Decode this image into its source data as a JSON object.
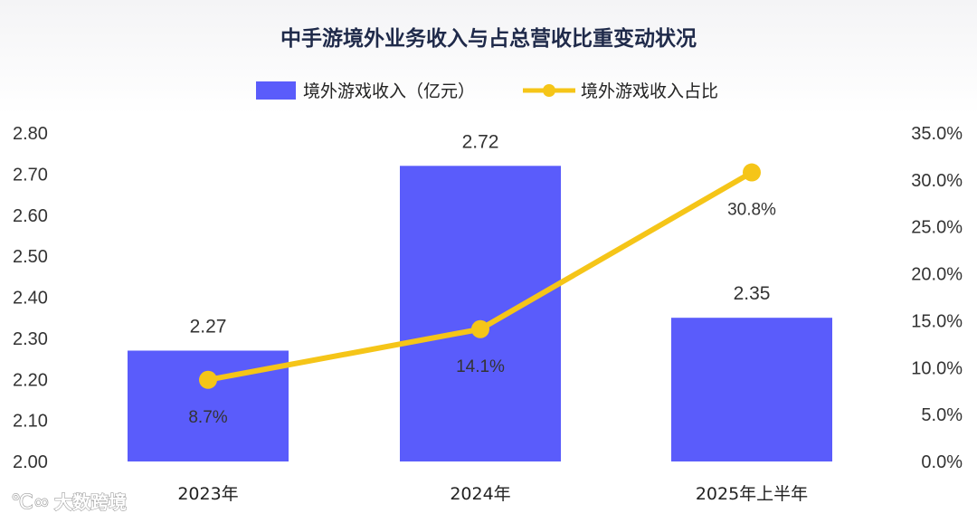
{
  "chart_data": {
    "type": "bar",
    "title": "中手游境外业务收入与占总营收比重变动状况",
    "categories": [
      "2023年",
      "2024年",
      "2025年上半年"
    ],
    "series": [
      {
        "name": "境外游戏收入（亿元）",
        "type": "bar",
        "axis": "left",
        "values": [
          2.27,
          2.72,
          2.35
        ],
        "labels": [
          "2.27",
          "2.72",
          "2.35"
        ],
        "color": "#5a5cfb"
      },
      {
        "name": "境外游戏收入占比",
        "type": "line",
        "axis": "right",
        "values": [
          8.7,
          14.1,
          30.8
        ],
        "labels": [
          "8.7%",
          "14.1%",
          "30.8%"
        ],
        "color": "#f5c518"
      }
    ],
    "y_left": {
      "ylim": [
        2.0,
        2.8
      ],
      "ticks": [
        "2.00",
        "2.10",
        "2.20",
        "2.30",
        "2.40",
        "2.50",
        "2.60",
        "2.70",
        "2.80"
      ]
    },
    "y_right": {
      "ylim": [
        0,
        35
      ],
      "ticks": [
        "0.0%",
        "5.0%",
        "10.0%",
        "15.0%",
        "20.0%",
        "25.0%",
        "30.0%",
        "35.0%"
      ]
    },
    "legend_position": "top-center",
    "grid": false
  },
  "watermark": {
    "text": "大数跨境"
  }
}
